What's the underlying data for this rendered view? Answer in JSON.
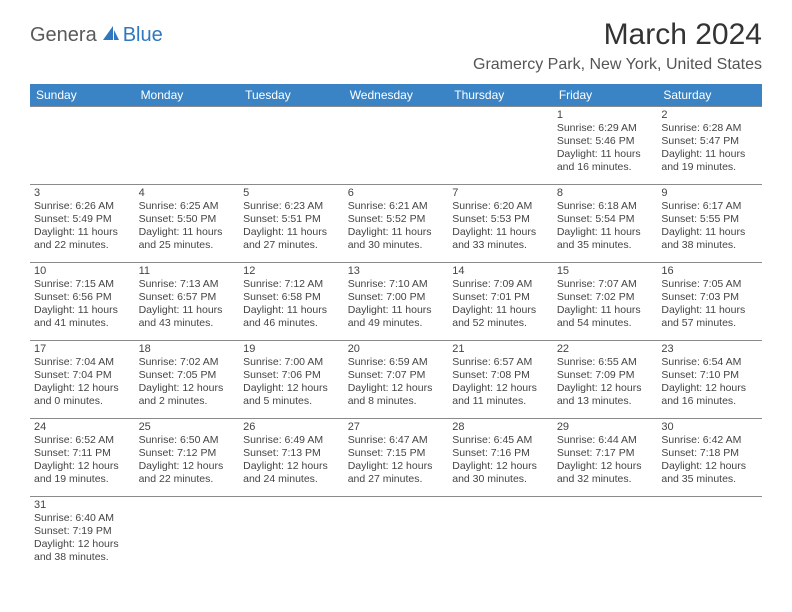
{
  "header": {
    "logo_part1": "Genera",
    "logo_part2": "Blue",
    "month_title": "March 2024",
    "location": "Gramercy Park, New York, United States"
  },
  "style": {
    "header_bg": "#3a84c6",
    "header_text": "#ffffff",
    "border_color": "#8a8a8a",
    "text_color": "#444444",
    "logo_gray": "#5a5a5a",
    "logo_blue": "#2f78bf"
  },
  "weekdays": [
    "Sunday",
    "Monday",
    "Tuesday",
    "Wednesday",
    "Thursday",
    "Friday",
    "Saturday"
  ],
  "weeks": [
    [
      null,
      null,
      null,
      null,
      null,
      {
        "d": "1",
        "sr": "Sunrise: 6:29 AM",
        "ss": "Sunset: 5:46 PM",
        "dl1": "Daylight: 11 hours",
        "dl2": "and 16 minutes."
      },
      {
        "d": "2",
        "sr": "Sunrise: 6:28 AM",
        "ss": "Sunset: 5:47 PM",
        "dl1": "Daylight: 11 hours",
        "dl2": "and 19 minutes."
      }
    ],
    [
      {
        "d": "3",
        "sr": "Sunrise: 6:26 AM",
        "ss": "Sunset: 5:49 PM",
        "dl1": "Daylight: 11 hours",
        "dl2": "and 22 minutes."
      },
      {
        "d": "4",
        "sr": "Sunrise: 6:25 AM",
        "ss": "Sunset: 5:50 PM",
        "dl1": "Daylight: 11 hours",
        "dl2": "and 25 minutes."
      },
      {
        "d": "5",
        "sr": "Sunrise: 6:23 AM",
        "ss": "Sunset: 5:51 PM",
        "dl1": "Daylight: 11 hours",
        "dl2": "and 27 minutes."
      },
      {
        "d": "6",
        "sr": "Sunrise: 6:21 AM",
        "ss": "Sunset: 5:52 PM",
        "dl1": "Daylight: 11 hours",
        "dl2": "and 30 minutes."
      },
      {
        "d": "7",
        "sr": "Sunrise: 6:20 AM",
        "ss": "Sunset: 5:53 PM",
        "dl1": "Daylight: 11 hours",
        "dl2": "and 33 minutes."
      },
      {
        "d": "8",
        "sr": "Sunrise: 6:18 AM",
        "ss": "Sunset: 5:54 PM",
        "dl1": "Daylight: 11 hours",
        "dl2": "and 35 minutes."
      },
      {
        "d": "9",
        "sr": "Sunrise: 6:17 AM",
        "ss": "Sunset: 5:55 PM",
        "dl1": "Daylight: 11 hours",
        "dl2": "and 38 minutes."
      }
    ],
    [
      {
        "d": "10",
        "sr": "Sunrise: 7:15 AM",
        "ss": "Sunset: 6:56 PM",
        "dl1": "Daylight: 11 hours",
        "dl2": "and 41 minutes."
      },
      {
        "d": "11",
        "sr": "Sunrise: 7:13 AM",
        "ss": "Sunset: 6:57 PM",
        "dl1": "Daylight: 11 hours",
        "dl2": "and 43 minutes."
      },
      {
        "d": "12",
        "sr": "Sunrise: 7:12 AM",
        "ss": "Sunset: 6:58 PM",
        "dl1": "Daylight: 11 hours",
        "dl2": "and 46 minutes."
      },
      {
        "d": "13",
        "sr": "Sunrise: 7:10 AM",
        "ss": "Sunset: 7:00 PM",
        "dl1": "Daylight: 11 hours",
        "dl2": "and 49 minutes."
      },
      {
        "d": "14",
        "sr": "Sunrise: 7:09 AM",
        "ss": "Sunset: 7:01 PM",
        "dl1": "Daylight: 11 hours",
        "dl2": "and 52 minutes."
      },
      {
        "d": "15",
        "sr": "Sunrise: 7:07 AM",
        "ss": "Sunset: 7:02 PM",
        "dl1": "Daylight: 11 hours",
        "dl2": "and 54 minutes."
      },
      {
        "d": "16",
        "sr": "Sunrise: 7:05 AM",
        "ss": "Sunset: 7:03 PM",
        "dl1": "Daylight: 11 hours",
        "dl2": "and 57 minutes."
      }
    ],
    [
      {
        "d": "17",
        "sr": "Sunrise: 7:04 AM",
        "ss": "Sunset: 7:04 PM",
        "dl1": "Daylight: 12 hours",
        "dl2": "and 0 minutes."
      },
      {
        "d": "18",
        "sr": "Sunrise: 7:02 AM",
        "ss": "Sunset: 7:05 PM",
        "dl1": "Daylight: 12 hours",
        "dl2": "and 2 minutes."
      },
      {
        "d": "19",
        "sr": "Sunrise: 7:00 AM",
        "ss": "Sunset: 7:06 PM",
        "dl1": "Daylight: 12 hours",
        "dl2": "and 5 minutes."
      },
      {
        "d": "20",
        "sr": "Sunrise: 6:59 AM",
        "ss": "Sunset: 7:07 PM",
        "dl1": "Daylight: 12 hours",
        "dl2": "and 8 minutes."
      },
      {
        "d": "21",
        "sr": "Sunrise: 6:57 AM",
        "ss": "Sunset: 7:08 PM",
        "dl1": "Daylight: 12 hours",
        "dl2": "and 11 minutes."
      },
      {
        "d": "22",
        "sr": "Sunrise: 6:55 AM",
        "ss": "Sunset: 7:09 PM",
        "dl1": "Daylight: 12 hours",
        "dl2": "and 13 minutes."
      },
      {
        "d": "23",
        "sr": "Sunrise: 6:54 AM",
        "ss": "Sunset: 7:10 PM",
        "dl1": "Daylight: 12 hours",
        "dl2": "and 16 minutes."
      }
    ],
    [
      {
        "d": "24",
        "sr": "Sunrise: 6:52 AM",
        "ss": "Sunset: 7:11 PM",
        "dl1": "Daylight: 12 hours",
        "dl2": "and 19 minutes."
      },
      {
        "d": "25",
        "sr": "Sunrise: 6:50 AM",
        "ss": "Sunset: 7:12 PM",
        "dl1": "Daylight: 12 hours",
        "dl2": "and 22 minutes."
      },
      {
        "d": "26",
        "sr": "Sunrise: 6:49 AM",
        "ss": "Sunset: 7:13 PM",
        "dl1": "Daylight: 12 hours",
        "dl2": "and 24 minutes."
      },
      {
        "d": "27",
        "sr": "Sunrise: 6:47 AM",
        "ss": "Sunset: 7:15 PM",
        "dl1": "Daylight: 12 hours",
        "dl2": "and 27 minutes."
      },
      {
        "d": "28",
        "sr": "Sunrise: 6:45 AM",
        "ss": "Sunset: 7:16 PM",
        "dl1": "Daylight: 12 hours",
        "dl2": "and 30 minutes."
      },
      {
        "d": "29",
        "sr": "Sunrise: 6:44 AM",
        "ss": "Sunset: 7:17 PM",
        "dl1": "Daylight: 12 hours",
        "dl2": "and 32 minutes."
      },
      {
        "d": "30",
        "sr": "Sunrise: 6:42 AM",
        "ss": "Sunset: 7:18 PM",
        "dl1": "Daylight: 12 hours",
        "dl2": "and 35 minutes."
      }
    ],
    [
      {
        "d": "31",
        "sr": "Sunrise: 6:40 AM",
        "ss": "Sunset: 7:19 PM",
        "dl1": "Daylight: 12 hours",
        "dl2": "and 38 minutes."
      },
      null,
      null,
      null,
      null,
      null,
      null
    ]
  ]
}
